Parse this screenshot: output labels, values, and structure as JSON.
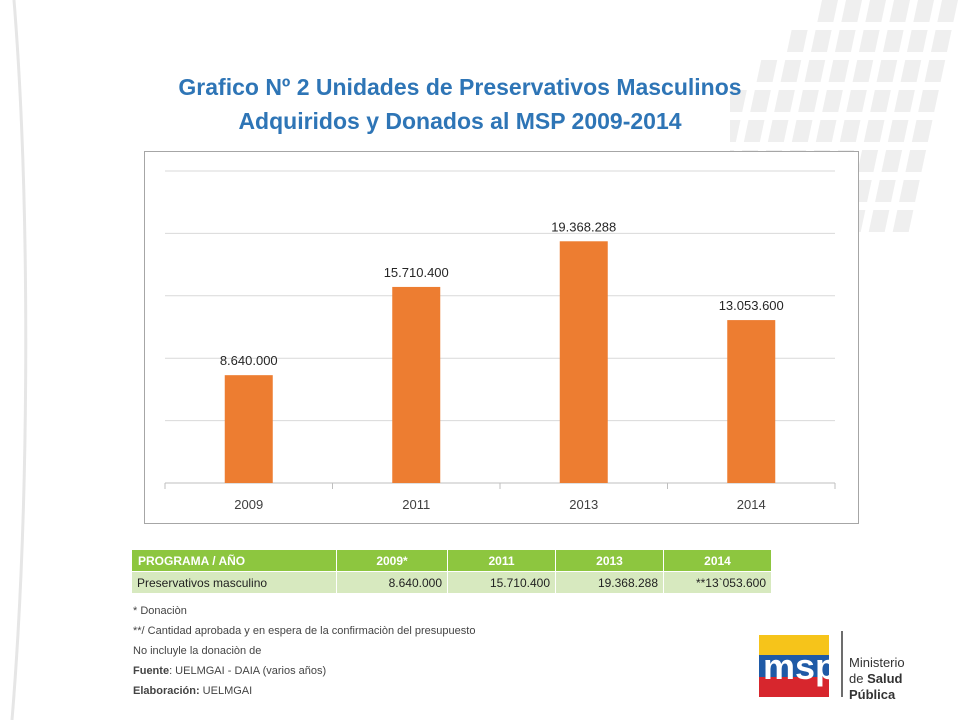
{
  "title_line1": "Grafico Nº 2 Unidades de Preservativos Masculinos",
  "title_line2": "Adquiridos y Donados al MSP 2009-2014",
  "colors": {
    "bar": "#ed7d31",
    "title": "#2e75b6",
    "table_header": "#8dc63f",
    "table_row": "#d7e9bf"
  },
  "chart_data": {
    "type": "bar",
    "title": "Grafico Nº 2 Unidades de Preservativos Masculinos Adquiridos y Donados al MSP 2009-2014",
    "categories": [
      "2009",
      "2011",
      "2013",
      "2014"
    ],
    "values": [
      8640000,
      15710400,
      19368288,
      13053600
    ],
    "data_labels": [
      "8.640.000",
      "15.710.400",
      "19.368.288",
      "13.053.600"
    ],
    "xlabel": "",
    "ylabel": "",
    "ylim": [
      0,
      25000000
    ],
    "gridlines": [
      0,
      5000000,
      10000000,
      15000000,
      20000000,
      25000000
    ],
    "grid": true,
    "legend": "none"
  },
  "table": {
    "headers": [
      "PROGRAMA / AÑO",
      "2009*",
      "2011",
      "2013",
      "2014"
    ],
    "row": [
      "Preservativos masculino",
      "8.640.000",
      "15.710.400",
      "19.368.288",
      "**13`053.600"
    ]
  },
  "notes": {
    "donation": "* Donaciòn",
    "pending": "**/ Cantidad aprobada y en espera de la confirmaciòn del presupuesto",
    "excludes": "No incluyle la donaciòn de",
    "source_label": "Fuente",
    "source_value": ": UELMGAI - DAIA (varios años)",
    "made_label": "Elaboración:",
    "made_value": " UELMGAI"
  },
  "logo": {
    "mark": "msp",
    "line1": "Ministerio",
    "line2_prefix": "de ",
    "line2_bold": "Salud Pública"
  }
}
